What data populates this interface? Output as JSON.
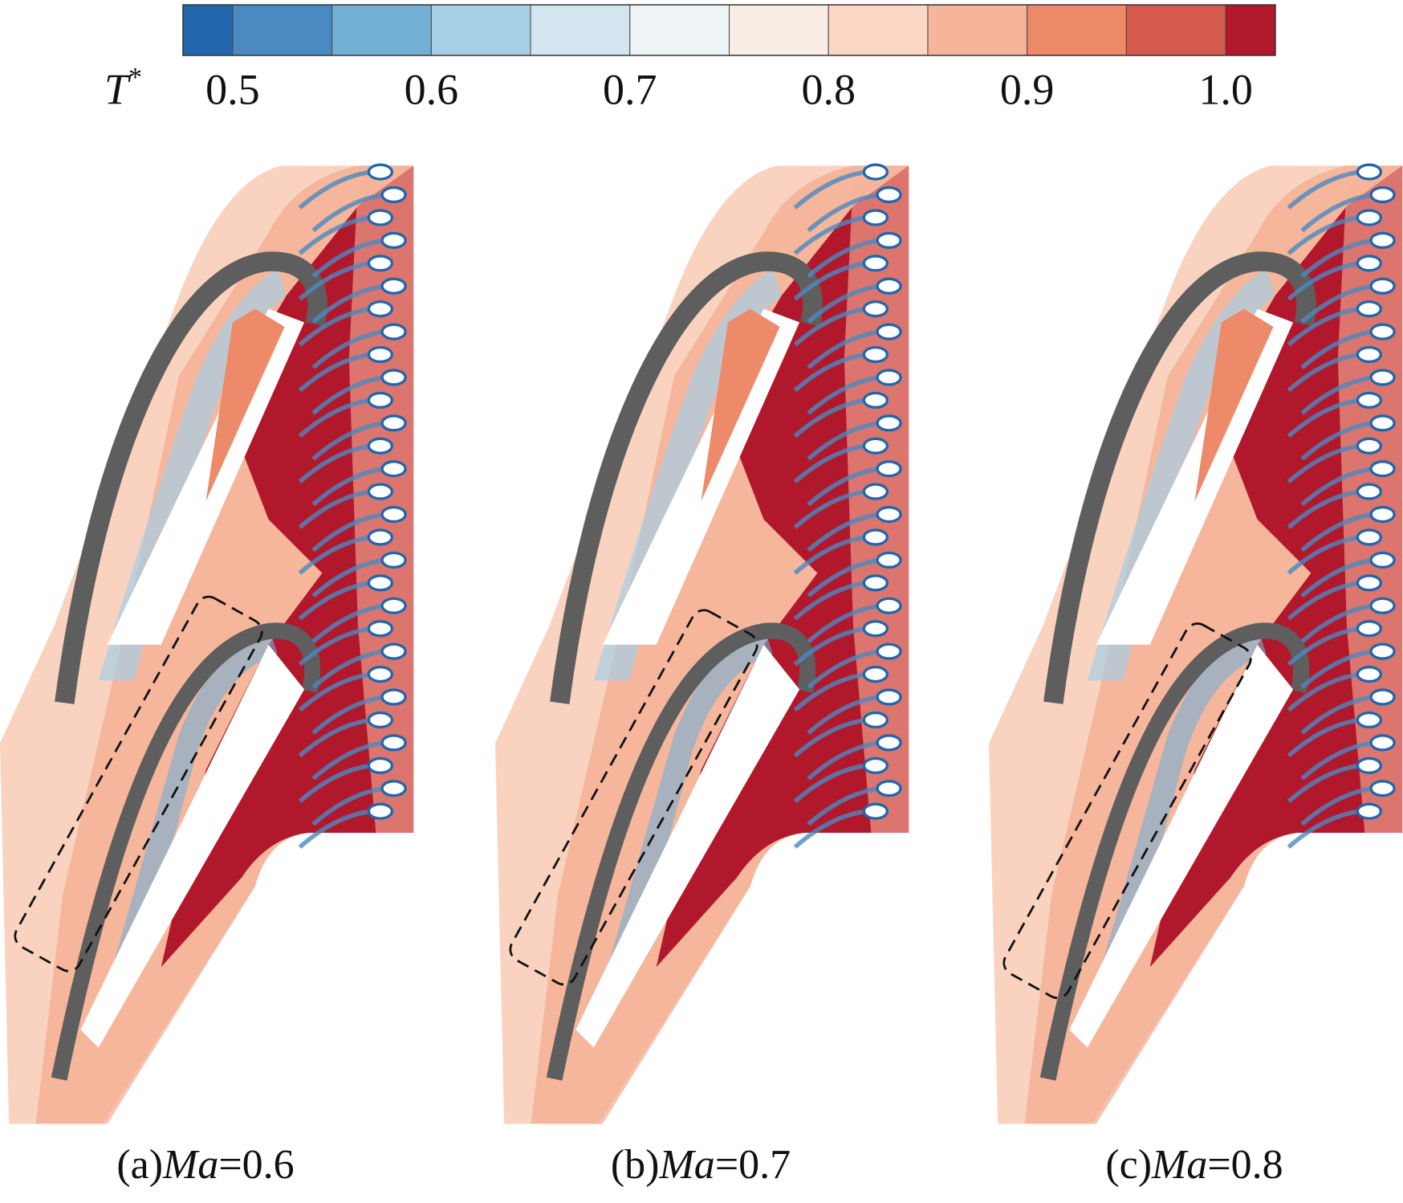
{
  "colorbar": {
    "label": "T",
    "label_sup": "*",
    "range": [
      0.475,
      1.025
    ],
    "levels": [
      0.5,
      0.55,
      0.6,
      0.65,
      0.7,
      0.75,
      0.8,
      0.85,
      0.9,
      0.95,
      1.0
    ],
    "colors": [
      "#2166ac",
      "#4a8ac2",
      "#74afd6",
      "#a7cfe5",
      "#d3e6f0",
      "#eef3f6",
      "#f9ece5",
      "#fcd7c3",
      "#f6b49a",
      "#ec8a6a",
      "#d35a4c",
      "#b2182b"
    ],
    "ticks": [
      0.5,
      0.6,
      0.7,
      0.8,
      0.9,
      {
        "value": 1,
        "label": "1.0"
      }
    ]
  },
  "panels": [
    {
      "tag": "(a)",
      "variable": "Ma",
      "value_text": "=0.6"
    },
    {
      "tag": "(b)",
      "variable": "Ma",
      "value_text": "=0.7"
    },
    {
      "tag": "(c)",
      "variable": "Ma",
      "value_text": "=0.8"
    }
  ]
}
